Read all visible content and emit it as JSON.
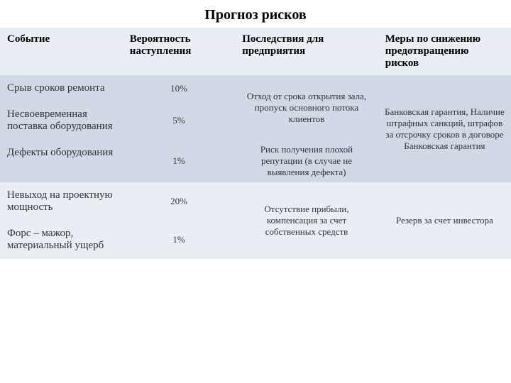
{
  "title": "Прогноз рисков",
  "headers": {
    "event": "Событие",
    "prob": "Вероятность наступления",
    "cons": "Последствия для предприятия",
    "meas": "Меры по снижению предотвращению рисков"
  },
  "rows": {
    "r1": {
      "event": "Срыв сроков ремонта",
      "prob": "10%"
    },
    "r2": {
      "event": "Несвоевременная поставка оборудования",
      "prob": "5%"
    },
    "r3": {
      "event": "Дефекты оборудования",
      "prob": "1%"
    },
    "r4": {
      "event": "Невыход на проектную мощность",
      "prob": "20%"
    },
    "r5": {
      "event": "Форс – мажор, материальный ущерб",
      "prob": "1%"
    }
  },
  "cons": {
    "g1": "Отход от срока открытия зала, пропуск основного потока клиентов",
    "g2": "Риск получения плохой репутации (в случае не выявления дефекта)",
    "g3": "Отсутствие прибыли, компенсация за счет собственных средств"
  },
  "meas": {
    "m1": "Банковская гарантия, Наличие штрафных санкций, штрафов за отсрочку сроков в договоре Банковская гарантия",
    "m2": "Резерв за счет инвестора"
  }
}
